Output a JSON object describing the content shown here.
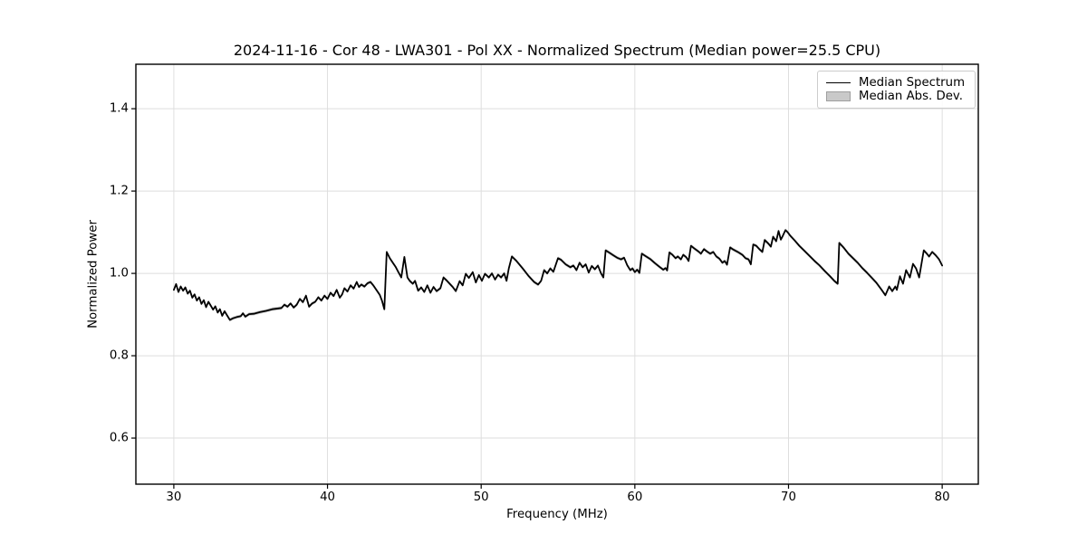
{
  "chart_data": {
    "type": "line",
    "title": "2024-11-16 - Cor 48 - LWA301 - Pol XX - Normalized Spectrum (Median power=25.5 CPU)",
    "xlabel": "Frequency (MHz)",
    "ylabel": "Normalized Power",
    "xlim": [
      27.53,
      82.35
    ],
    "ylim": [
      0.488,
      1.508
    ],
    "xticks": [
      30,
      40,
      50,
      60,
      70,
      80
    ],
    "yticks": [
      0.6,
      0.8,
      1.0,
      1.2,
      1.4
    ],
    "grid": true,
    "grid_color": "#dedede",
    "spine_color": "#000000",
    "background": "#ffffff",
    "legend": {
      "position": "upper right",
      "entries": [
        {
          "label": "Median Spectrum",
          "type": "line",
          "color": "#000000"
        },
        {
          "label": "Median Abs. Dev.",
          "type": "patch",
          "fill": "#c9c9c9",
          "edge": "#9e9e9e"
        }
      ]
    },
    "band": {
      "name": "Median Abs. Dev.",
      "halfwidth": 0.004,
      "fill": "#c9c9c9"
    },
    "series": [
      {
        "name": "Median Spectrum",
        "color": "#000000",
        "linewidth": 1.8,
        "points": [
          [
            30.0,
            0.96
          ],
          [
            30.15,
            0.974
          ],
          [
            30.3,
            0.955
          ],
          [
            30.45,
            0.968
          ],
          [
            30.6,
            0.958
          ],
          [
            30.75,
            0.966
          ],
          [
            30.9,
            0.951
          ],
          [
            31.05,
            0.958
          ],
          [
            31.2,
            0.941
          ],
          [
            31.35,
            0.949
          ],
          [
            31.5,
            0.934
          ],
          [
            31.65,
            0.942
          ],
          [
            31.8,
            0.926
          ],
          [
            31.95,
            0.935
          ],
          [
            32.1,
            0.918
          ],
          [
            32.25,
            0.931
          ],
          [
            32.4,
            0.922
          ],
          [
            32.55,
            0.912
          ],
          [
            32.7,
            0.92
          ],
          [
            32.85,
            0.905
          ],
          [
            33.0,
            0.913
          ],
          [
            33.15,
            0.897
          ],
          [
            33.3,
            0.908
          ],
          [
            33.45,
            0.899
          ],
          [
            33.65,
            0.887
          ],
          [
            33.85,
            0.891
          ],
          [
            34.1,
            0.894
          ],
          [
            34.35,
            0.896
          ],
          [
            34.5,
            0.903
          ],
          [
            34.65,
            0.895
          ],
          [
            34.9,
            0.901
          ],
          [
            35.2,
            0.902
          ],
          [
            35.6,
            0.906
          ],
          [
            36.0,
            0.909
          ],
          [
            36.4,
            0.913
          ],
          [
            36.8,
            0.915
          ],
          [
            37.0,
            0.916
          ],
          [
            37.2,
            0.924
          ],
          [
            37.4,
            0.919
          ],
          [
            37.6,
            0.927
          ],
          [
            37.8,
            0.917
          ],
          [
            38.0,
            0.924
          ],
          [
            38.2,
            0.938
          ],
          [
            38.4,
            0.93
          ],
          [
            38.6,
            0.946
          ],
          [
            38.8,
            0.919
          ],
          [
            39.0,
            0.927
          ],
          [
            39.2,
            0.931
          ],
          [
            39.4,
            0.942
          ],
          [
            39.6,
            0.934
          ],
          [
            39.8,
            0.946
          ],
          [
            40.0,
            0.938
          ],
          [
            40.2,
            0.953
          ],
          [
            40.4,
            0.945
          ],
          [
            40.6,
            0.96
          ],
          [
            40.8,
            0.941
          ],
          [
            40.95,
            0.949
          ],
          [
            41.1,
            0.964
          ],
          [
            41.3,
            0.956
          ],
          [
            41.5,
            0.971
          ],
          [
            41.7,
            0.963
          ],
          [
            41.9,
            0.979
          ],
          [
            42.05,
            0.967
          ],
          [
            42.2,
            0.973
          ],
          [
            42.4,
            0.968
          ],
          [
            42.6,
            0.976
          ],
          [
            42.8,
            0.979
          ],
          [
            43.0,
            0.97
          ],
          [
            43.2,
            0.959
          ],
          [
            43.4,
            0.948
          ],
          [
            43.55,
            0.933
          ],
          [
            43.7,
            0.913
          ],
          [
            43.85,
            1.052
          ],
          [
            44.05,
            1.037
          ],
          [
            44.25,
            1.026
          ],
          [
            44.45,
            1.015
          ],
          [
            44.6,
            1.004
          ],
          [
            44.8,
            0.99
          ],
          [
            45.0,
            1.04
          ],
          [
            45.2,
            0.99
          ],
          [
            45.35,
            0.982
          ],
          [
            45.55,
            0.975
          ],
          [
            45.7,
            0.982
          ],
          [
            45.9,
            0.958
          ],
          [
            46.1,
            0.966
          ],
          [
            46.3,
            0.955
          ],
          [
            46.5,
            0.971
          ],
          [
            46.7,
            0.953
          ],
          [
            46.9,
            0.967
          ],
          [
            47.1,
            0.957
          ],
          [
            47.35,
            0.964
          ],
          [
            47.55,
            0.99
          ],
          [
            47.75,
            0.983
          ],
          [
            47.95,
            0.975
          ],
          [
            48.15,
            0.967
          ],
          [
            48.35,
            0.957
          ],
          [
            48.6,
            0.981
          ],
          [
            48.8,
            0.971
          ],
          [
            49.0,
            0.999
          ],
          [
            49.2,
            0.989
          ],
          [
            49.45,
            1.003
          ],
          [
            49.65,
            0.978
          ],
          [
            49.85,
            0.996
          ],
          [
            50.05,
            0.982
          ],
          [
            50.25,
            0.999
          ],
          [
            50.5,
            0.99
          ],
          [
            50.7,
            1.0
          ],
          [
            50.9,
            0.985
          ],
          [
            51.1,
            0.997
          ],
          [
            51.3,
            0.99
          ],
          [
            51.5,
            1.0
          ],
          [
            51.65,
            0.982
          ],
          [
            51.8,
            1.012
          ],
          [
            52.0,
            1.041
          ],
          [
            52.3,
            1.03
          ],
          [
            52.7,
            1.012
          ],
          [
            53.1,
            0.993
          ],
          [
            53.45,
            0.979
          ],
          [
            53.7,
            0.973
          ],
          [
            53.9,
            0.982
          ],
          [
            54.1,
            1.008
          ],
          [
            54.3,
            1.0
          ],
          [
            54.5,
            1.012
          ],
          [
            54.7,
            1.004
          ],
          [
            55.0,
            1.037
          ],
          [
            55.2,
            1.033
          ],
          [
            55.5,
            1.022
          ],
          [
            55.8,
            1.015
          ],
          [
            56.0,
            1.019
          ],
          [
            56.2,
            1.008
          ],
          [
            56.4,
            1.026
          ],
          [
            56.6,
            1.015
          ],
          [
            56.8,
            1.022
          ],
          [
            57.0,
            1.002
          ],
          [
            57.2,
            1.018
          ],
          [
            57.4,
            1.01
          ],
          [
            57.6,
            1.019
          ],
          [
            57.8,
            1.0
          ],
          [
            57.95,
            0.99
          ],
          [
            58.1,
            1.056
          ],
          [
            58.35,
            1.05
          ],
          [
            58.6,
            1.044
          ],
          [
            58.85,
            1.038
          ],
          [
            59.1,
            1.034
          ],
          [
            59.3,
            1.038
          ],
          [
            59.5,
            1.02
          ],
          [
            59.7,
            1.008
          ],
          [
            59.85,
            1.012
          ],
          [
            60.0,
            1.003
          ],
          [
            60.15,
            1.009
          ],
          [
            60.3,
            1.001
          ],
          [
            60.45,
            1.048
          ],
          [
            60.7,
            1.042
          ],
          [
            61.0,
            1.035
          ],
          [
            61.3,
            1.025
          ],
          [
            61.6,
            1.016
          ],
          [
            61.85,
            1.009
          ],
          [
            62.0,
            1.013
          ],
          [
            62.1,
            1.007
          ],
          [
            62.25,
            1.051
          ],
          [
            62.45,
            1.045
          ],
          [
            62.65,
            1.037
          ],
          [
            62.8,
            1.041
          ],
          [
            63.0,
            1.034
          ],
          [
            63.15,
            1.045
          ],
          [
            63.35,
            1.039
          ],
          [
            63.5,
            1.03
          ],
          [
            63.65,
            1.067
          ],
          [
            63.85,
            1.061
          ],
          [
            64.15,
            1.053
          ],
          [
            64.3,
            1.048
          ],
          [
            64.5,
            1.059
          ],
          [
            64.7,
            1.053
          ],
          [
            64.9,
            1.048
          ],
          [
            65.1,
            1.052
          ],
          [
            65.3,
            1.041
          ],
          [
            65.5,
            1.036
          ],
          [
            65.7,
            1.026
          ],
          [
            65.85,
            1.03
          ],
          [
            66.0,
            1.021
          ],
          [
            66.2,
            1.063
          ],
          [
            66.4,
            1.058
          ],
          [
            66.7,
            1.052
          ],
          [
            67.0,
            1.045
          ],
          [
            67.2,
            1.037
          ],
          [
            67.4,
            1.034
          ],
          [
            67.55,
            1.022
          ],
          [
            67.7,
            1.07
          ],
          [
            67.9,
            1.067
          ],
          [
            68.1,
            1.059
          ],
          [
            68.3,
            1.052
          ],
          [
            68.45,
            1.081
          ],
          [
            68.7,
            1.072
          ],
          [
            68.85,
            1.065
          ],
          [
            69.0,
            1.089
          ],
          [
            69.2,
            1.078
          ],
          [
            69.35,
            1.103
          ],
          [
            69.5,
            1.082
          ],
          [
            69.6,
            1.089
          ],
          [
            69.8,
            1.105
          ],
          [
            69.95,
            1.1
          ],
          [
            70.1,
            1.092
          ],
          [
            70.4,
            1.08
          ],
          [
            70.7,
            1.067
          ],
          [
            71.0,
            1.056
          ],
          [
            71.35,
            1.043
          ],
          [
            71.7,
            1.03
          ],
          [
            72.0,
            1.02
          ],
          [
            72.35,
            1.006
          ],
          [
            72.7,
            0.993
          ],
          [
            73.0,
            0.981
          ],
          [
            73.2,
            0.975
          ],
          [
            73.3,
            1.074
          ],
          [
            73.6,
            1.062
          ],
          [
            73.9,
            1.048
          ],
          [
            74.2,
            1.037
          ],
          [
            74.5,
            1.026
          ],
          [
            74.8,
            1.013
          ],
          [
            75.1,
            1.002
          ],
          [
            75.4,
            0.99
          ],
          [
            75.7,
            0.978
          ],
          [
            76.0,
            0.963
          ],
          [
            76.3,
            0.947
          ],
          [
            76.55,
            0.968
          ],
          [
            76.75,
            0.957
          ],
          [
            76.95,
            0.968
          ],
          [
            77.05,
            0.96
          ],
          [
            77.25,
            0.993
          ],
          [
            77.45,
            0.975
          ],
          [
            77.65,
            1.008
          ],
          [
            77.9,
            0.99
          ],
          [
            78.1,
            1.023
          ],
          [
            78.3,
            1.012
          ],
          [
            78.5,
            0.99
          ],
          [
            78.8,
            1.056
          ],
          [
            79.0,
            1.048
          ],
          [
            79.15,
            1.041
          ],
          [
            79.35,
            1.052
          ],
          [
            79.55,
            1.045
          ],
          [
            79.8,
            1.034
          ],
          [
            80.0,
            1.019
          ]
        ]
      }
    ]
  }
}
